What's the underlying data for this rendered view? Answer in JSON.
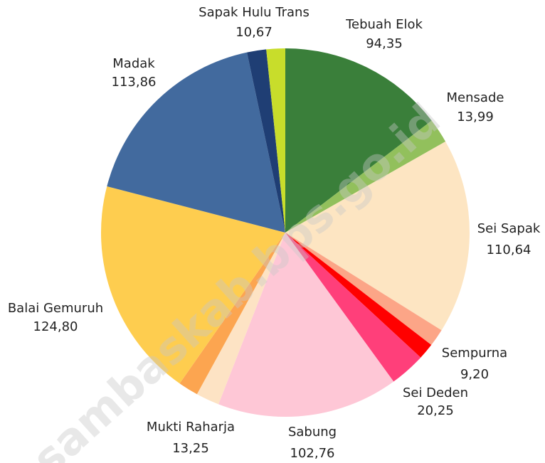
{
  "chart_data": {
    "type": "pie",
    "categories": [
      "Tebuah Elok",
      "Mensade",
      "Sei Sapak",
      null,
      "Sempurna",
      "Sei Deden",
      "Sabung",
      "Mukti Raharja",
      null,
      "Balai Gemuruh",
      "Madak",
      null,
      "Sapak Hulu Trans"
    ],
    "values": [
      94.35,
      13.99,
      110.64,
      10,
      9.2,
      20.25,
      102.76,
      13.25,
      11.4,
      124.8,
      113.86,
      10.9,
      10.67
    ],
    "value_labels": [
      "94,35",
      "13,99",
      "110,64",
      null,
      "9,20",
      "20,25",
      "102,76",
      "13,25",
      null,
      "124,80",
      "113,86",
      null,
      "10,67"
    ],
    "colors": [
      "#3a7f3a",
      "#92c05c",
      "#fde5c2",
      "#fca587",
      "#ff0000",
      "#ff3f7a",
      "#fec7d6",
      "#fde3c4",
      "#fca550",
      "#fecd4f",
      "#426a9e",
      "#1f3e74",
      "#c8dd2b"
    ],
    "watermark": "sambaskab.bps.go.id"
  }
}
